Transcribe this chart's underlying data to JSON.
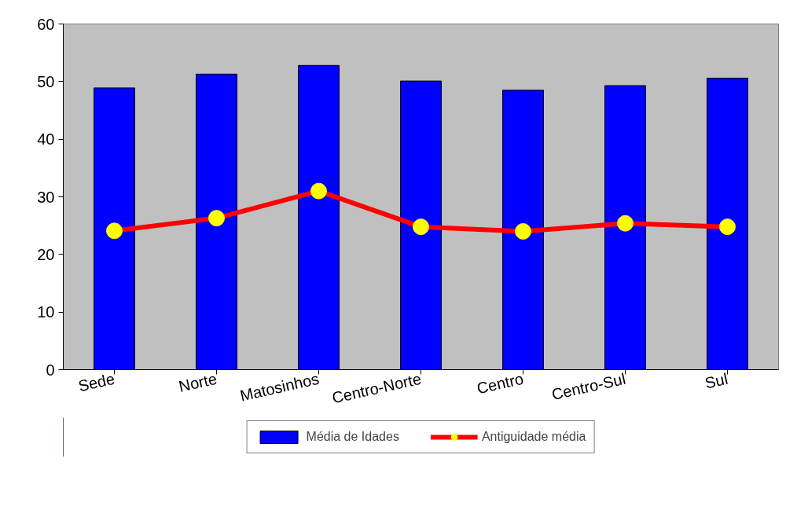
{
  "chart_data": {
    "type": "bar",
    "categories": [
      "Sede",
      "Norte",
      "Matosinhos",
      "Centro-Norte",
      "Centro",
      "Centro-Sul",
      "Sul"
    ],
    "series": [
      {
        "name": "Média de Idades",
        "color": "#0000ff",
        "values": [
          48.9,
          51.3,
          52.8,
          50.1,
          48.5,
          49.3,
          50.6
        ]
      },
      {
        "name": "Antiguidade média",
        "type": "line",
        "color": "#ff0000",
        "marker": "circle",
        "values": [
          24.1,
          26.3,
          31.0,
          24.8,
          24.0,
          25.4,
          24.8
        ]
      }
    ],
    "ylim": [
      0,
      60
    ],
    "yticks": [
      0,
      10,
      20,
      30,
      40,
      50,
      60
    ],
    "grid": false,
    "legend": "bottom"
  }
}
